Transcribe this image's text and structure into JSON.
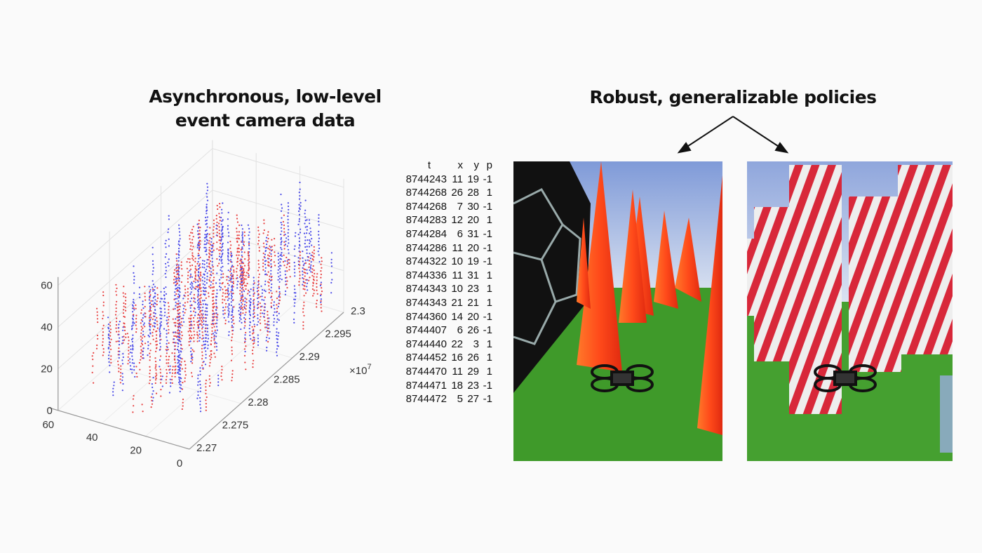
{
  "left_title": [
    "Asynchronous, low-level",
    "event camera data"
  ],
  "right_title": "Robust, generalizable policies",
  "chart_data": {
    "type": "scatter",
    "projection": "3d",
    "z_ticks": [
      "0",
      "20",
      "40",
      "60"
    ],
    "x_ticks": [
      "60",
      "40",
      "20",
      "0"
    ],
    "t_ticks": [
      "2.27",
      "2.275",
      "2.28",
      "2.285",
      "2.29",
      "2.295",
      "2.3"
    ],
    "t_exponent": "×10",
    "t_exponent_power": "7",
    "grid": true,
    "colors": {
      "positive": "#e84040",
      "negative": "#4a4ae8"
    }
  },
  "event_table": {
    "headers": [
      "t",
      "x",
      "y",
      "p"
    ],
    "rows": [
      [
        "8744243",
        "11",
        "19",
        "-1"
      ],
      [
        "8744268",
        "26",
        "28",
        "1"
      ],
      [
        "8744268",
        "7",
        "30",
        "-1"
      ],
      [
        "8744283",
        "12",
        "20",
        "1"
      ],
      [
        "8744284",
        "6",
        "31",
        "-1"
      ],
      [
        "8744286",
        "11",
        "20",
        "-1"
      ],
      [
        "8744322",
        "10",
        "19",
        "-1"
      ],
      [
        "8744336",
        "11",
        "31",
        "1"
      ],
      [
        "8744343",
        "10",
        "23",
        "1"
      ],
      [
        "8744343",
        "21",
        "21",
        "1"
      ],
      [
        "8744360",
        "14",
        "20",
        "-1"
      ],
      [
        "8744407",
        "6",
        "26",
        "-1"
      ],
      [
        "8744440",
        "22",
        "3",
        "1"
      ],
      [
        "8744452",
        "16",
        "26",
        "1"
      ],
      [
        "8744470",
        "11",
        "29",
        "1"
      ],
      [
        "8744471",
        "18",
        "23",
        "-1"
      ],
      [
        "8744472",
        "5",
        "27",
        "-1"
      ]
    ]
  },
  "scenes": [
    {
      "name": "cones-scene",
      "sky": "#b8c8ea",
      "ground": "#3f9a2a",
      "obstacle": "#ff4a1a"
    },
    {
      "name": "striped-pillars-scene",
      "sky": "#c8d4f0",
      "ground": "#45a030",
      "obstacle": "#d8283a"
    }
  ]
}
